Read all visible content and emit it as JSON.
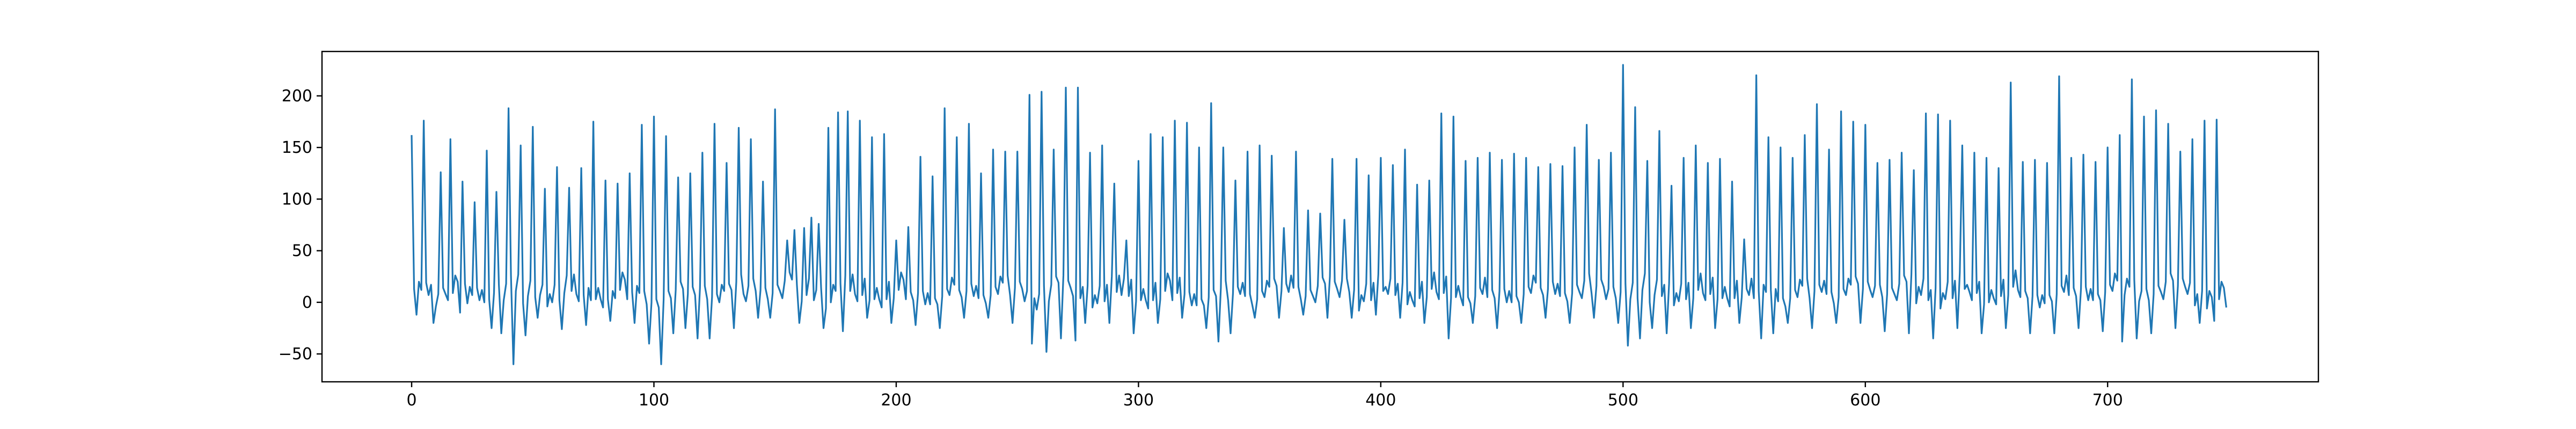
{
  "chart_data": {
    "type": "line",
    "title": "",
    "xlabel": "",
    "ylabel": "",
    "xlim": [
      -37,
      787
    ],
    "ylim": [
      -77,
      243
    ],
    "grid": false,
    "legend": "none",
    "x_ticks": [
      0,
      100,
      200,
      300,
      400,
      500,
      600,
      700
    ],
    "x_tick_labels": [
      "0",
      "100",
      "200",
      "300",
      "400",
      "500",
      "600",
      "700"
    ],
    "y_ticks": [
      -50,
      0,
      50,
      100,
      150,
      200
    ],
    "y_tick_labels": [
      "−50",
      "0",
      "50",
      "100",
      "150",
      "200"
    ],
    "series": [
      {
        "color": "#1f77b4",
        "x_start": 0,
        "x_end": 749,
        "n_points": 750,
        "baseline_sample": [
          10,
          12,
          13,
          15,
          12,
          8,
          5,
          3,
          4,
          7,
          10,
          12,
          15,
          18,
          20
        ],
        "peaks": [
          {
            "x": 0,
            "y": 162
          },
          {
            "x": 5,
            "y": 176
          },
          {
            "x": 12,
            "y": 126
          },
          {
            "x": 16,
            "y": 158
          },
          {
            "x": 21,
            "y": 117
          },
          {
            "x": 26,
            "y": 97
          },
          {
            "x": 31,
            "y": 147
          },
          {
            "x": 35,
            "y": 107
          },
          {
            "x": 40,
            "y": 188
          },
          {
            "x": 45,
            "y": 152
          },
          {
            "x": 50,
            "y": 170
          },
          {
            "x": 55,
            "y": 110
          },
          {
            "x": 60,
            "y": 131
          },
          {
            "x": 65,
            "y": 111
          },
          {
            "x": 70,
            "y": 130
          },
          {
            "x": 75,
            "y": 175
          },
          {
            "x": 80,
            "y": 118
          },
          {
            "x": 85,
            "y": 115
          },
          {
            "x": 90,
            "y": 125
          },
          {
            "x": 95,
            "y": 172
          },
          {
            "x": 100,
            "y": 180
          },
          {
            "x": 105,
            "y": 161
          },
          {
            "x": 110,
            "y": 121
          },
          {
            "x": 115,
            "y": 125
          },
          {
            "x": 120,
            "y": 145
          },
          {
            "x": 125,
            "y": 173
          },
          {
            "x": 130,
            "y": 135
          },
          {
            "x": 135,
            "y": 169
          },
          {
            "x": 140,
            "y": 158
          },
          {
            "x": 145,
            "y": 117
          },
          {
            "x": 150,
            "y": 187
          },
          {
            "x": 155,
            "y": 60
          },
          {
            "x": 158,
            "y": 70
          },
          {
            "x": 162,
            "y": 72
          },
          {
            "x": 165,
            "y": 82
          },
          {
            "x": 168,
            "y": 76
          },
          {
            "x": 172,
            "y": 169
          },
          {
            "x": 176,
            "y": 184
          },
          {
            "x": 180,
            "y": 185
          },
          {
            "x": 185,
            "y": 176
          },
          {
            "x": 190,
            "y": 160
          },
          {
            "x": 195,
            "y": 163
          },
          {
            "x": 200,
            "y": 60
          },
          {
            "x": 205,
            "y": 73
          },
          {
            "x": 210,
            "y": 141
          },
          {
            "x": 215,
            "y": 122
          },
          {
            "x": 220,
            "y": 188
          },
          {
            "x": 225,
            "y": 160
          },
          {
            "x": 230,
            "y": 173
          },
          {
            "x": 235,
            "y": 125
          },
          {
            "x": 240,
            "y": 148
          },
          {
            "x": 245,
            "y": 146
          },
          {
            "x": 250,
            "y": 146
          },
          {
            "x": 255,
            "y": 201
          },
          {
            "x": 260,
            "y": 204
          },
          {
            "x": 265,
            "y": 148
          },
          {
            "x": 270,
            "y": 208
          },
          {
            "x": 275,
            "y": 208
          },
          {
            "x": 280,
            "y": 145
          },
          {
            "x": 285,
            "y": 152
          },
          {
            "x": 290,
            "y": 115
          },
          {
            "x": 295,
            "y": 60
          },
          {
            "x": 300,
            "y": 137
          },
          {
            "x": 305,
            "y": 163
          },
          {
            "x": 310,
            "y": 160
          },
          {
            "x": 315,
            "y": 176
          },
          {
            "x": 320,
            "y": 174
          },
          {
            "x": 325,
            "y": 150
          },
          {
            "x": 330,
            "y": 193
          },
          {
            "x": 335,
            "y": 150
          },
          {
            "x": 340,
            "y": 118
          },
          {
            "x": 345,
            "y": 146
          },
          {
            "x": 350,
            "y": 152
          },
          {
            "x": 355,
            "y": 142
          },
          {
            "x": 360,
            "y": 72
          },
          {
            "x": 365,
            "y": 146
          },
          {
            "x": 370,
            "y": 89
          },
          {
            "x": 375,
            "y": 86
          },
          {
            "x": 380,
            "y": 139
          },
          {
            "x": 385,
            "y": 80
          },
          {
            "x": 390,
            "y": 139
          },
          {
            "x": 395,
            "y": 123
          },
          {
            "x": 400,
            "y": 140
          },
          {
            "x": 405,
            "y": 133
          },
          {
            "x": 410,
            "y": 148
          },
          {
            "x": 415,
            "y": 114
          },
          {
            "x": 420,
            "y": 118
          },
          {
            "x": 425,
            "y": 183
          },
          {
            "x": 430,
            "y": 180
          },
          {
            "x": 435,
            "y": 137
          },
          {
            "x": 440,
            "y": 140
          },
          {
            "x": 445,
            "y": 145
          },
          {
            "x": 450,
            "y": 138
          },
          {
            "x": 455,
            "y": 144
          },
          {
            "x": 460,
            "y": 140
          },
          {
            "x": 465,
            "y": 131
          },
          {
            "x": 470,
            "y": 134
          },
          {
            "x": 475,
            "y": 132
          },
          {
            "x": 480,
            "y": 150
          },
          {
            "x": 485,
            "y": 172
          },
          {
            "x": 490,
            "y": 138
          },
          {
            "x": 495,
            "y": 145
          },
          {
            "x": 500,
            "y": 230
          },
          {
            "x": 505,
            "y": 189
          },
          {
            "x": 510,
            "y": 137
          },
          {
            "x": 515,
            "y": 166
          },
          {
            "x": 520,
            "y": 113
          },
          {
            "x": 525,
            "y": 140
          },
          {
            "x": 530,
            "y": 152
          },
          {
            "x": 535,
            "y": 135
          },
          {
            "x": 540,
            "y": 139
          },
          {
            "x": 545,
            "y": 117
          },
          {
            "x": 550,
            "y": 61
          },
          {
            "x": 555,
            "y": 220
          },
          {
            "x": 560,
            "y": 160
          },
          {
            "x": 565,
            "y": 150
          },
          {
            "x": 570,
            "y": 140
          },
          {
            "x": 575,
            "y": 162
          },
          {
            "x": 580,
            "y": 192
          },
          {
            "x": 585,
            "y": 148
          },
          {
            "x": 590,
            "y": 185
          },
          {
            "x": 595,
            "y": 175
          },
          {
            "x": 600,
            "y": 172
          },
          {
            "x": 605,
            "y": 135
          },
          {
            "x": 610,
            "y": 138
          },
          {
            "x": 615,
            "y": 145
          },
          {
            "x": 620,
            "y": 128
          },
          {
            "x": 625,
            "y": 183
          },
          {
            "x": 630,
            "y": 182
          },
          {
            "x": 635,
            "y": 176
          },
          {
            "x": 640,
            "y": 152
          },
          {
            "x": 645,
            "y": 145
          },
          {
            "x": 650,
            "y": 140
          },
          {
            "x": 655,
            "y": 130
          },
          {
            "x": 660,
            "y": 213
          },
          {
            "x": 665,
            "y": 136
          },
          {
            "x": 670,
            "y": 138
          },
          {
            "x": 675,
            "y": 135
          },
          {
            "x": 680,
            "y": 219
          },
          {
            "x": 685,
            "y": 140
          },
          {
            "x": 690,
            "y": 143
          },
          {
            "x": 695,
            "y": 136
          },
          {
            "x": 700,
            "y": 150
          },
          {
            "x": 705,
            "y": 162
          },
          {
            "x": 710,
            "y": 216
          },
          {
            "x": 715,
            "y": 180
          },
          {
            "x": 720,
            "y": 186
          },
          {
            "x": 725,
            "y": 173
          },
          {
            "x": 730,
            "y": 146
          },
          {
            "x": 735,
            "y": 158
          },
          {
            "x": 740,
            "y": 176
          },
          {
            "x": 745,
            "y": 177
          }
        ],
        "troughs": [
          {
            "x": 2,
            "y": -12
          },
          {
            "x": 9,
            "y": -20
          },
          {
            "x": 20,
            "y": -10
          },
          {
            "x": 33,
            "y": -25
          },
          {
            "x": 37,
            "y": -30
          },
          {
            "x": 42,
            "y": -60
          },
          {
            "x": 47,
            "y": -32
          },
          {
            "x": 52,
            "y": -15
          },
          {
            "x": 62,
            "y": -26
          },
          {
            "x": 72,
            "y": -22
          },
          {
            "x": 82,
            "y": -18
          },
          {
            "x": 92,
            "y": -20
          },
          {
            "x": 98,
            "y": -40
          },
          {
            "x": 103,
            "y": -60
          },
          {
            "x": 108,
            "y": -30
          },
          {
            "x": 113,
            "y": -25
          },
          {
            "x": 118,
            "y": -35
          },
          {
            "x": 123,
            "y": -35
          },
          {
            "x": 133,
            "y": -25
          },
          {
            "x": 143,
            "y": -15
          },
          {
            "x": 148,
            "y": -15
          },
          {
            "x": 160,
            "y": -20
          },
          {
            "x": 170,
            "y": -25
          },
          {
            "x": 178,
            "y": -28
          },
          {
            "x": 188,
            "y": -15
          },
          {
            "x": 198,
            "y": -20
          },
          {
            "x": 208,
            "y": -22
          },
          {
            "x": 218,
            "y": -25
          },
          {
            "x": 228,
            "y": -15
          },
          {
            "x": 238,
            "y": -15
          },
          {
            "x": 248,
            "y": -20
          },
          {
            "x": 256,
            "y": -40
          },
          {
            "x": 262,
            "y": -48
          },
          {
            "x": 268,
            "y": -35
          },
          {
            "x": 274,
            "y": -37
          },
          {
            "x": 278,
            "y": -20
          },
          {
            "x": 288,
            "y": -20
          },
          {
            "x": 298,
            "y": -30
          },
          {
            "x": 308,
            "y": -20
          },
          {
            "x": 318,
            "y": -15
          },
          {
            "x": 328,
            "y": -25
          },
          {
            "x": 333,
            "y": -38
          },
          {
            "x": 338,
            "y": -30
          },
          {
            "x": 348,
            "y": -15
          },
          {
            "x": 358,
            "y": -15
          },
          {
            "x": 368,
            "y": -12
          },
          {
            "x": 378,
            "y": -15
          },
          {
            "x": 388,
            "y": -15
          },
          {
            "x": 398,
            "y": -12
          },
          {
            "x": 408,
            "y": -15
          },
          {
            "x": 418,
            "y": -20
          },
          {
            "x": 428,
            "y": -35
          },
          {
            "x": 438,
            "y": -20
          },
          {
            "x": 448,
            "y": -25
          },
          {
            "x": 458,
            "y": -20
          },
          {
            "x": 468,
            "y": -15
          },
          {
            "x": 478,
            "y": -20
          },
          {
            "x": 488,
            "y": -15
          },
          {
            "x": 498,
            "y": -20
          },
          {
            "x": 502,
            "y": -42
          },
          {
            "x": 507,
            "y": -35
          },
          {
            "x": 512,
            "y": -25
          },
          {
            "x": 518,
            "y": -30
          },
          {
            "x": 528,
            "y": -25
          },
          {
            "x": 538,
            "y": -25
          },
          {
            "x": 548,
            "y": -20
          },
          {
            "x": 557,
            "y": -35
          },
          {
            "x": 562,
            "y": -30
          },
          {
            "x": 568,
            "y": -20
          },
          {
            "x": 578,
            "y": -25
          },
          {
            "x": 588,
            "y": -20
          },
          {
            "x": 598,
            "y": -20
          },
          {
            "x": 608,
            "y": -28
          },
          {
            "x": 618,
            "y": -30
          },
          {
            "x": 628,
            "y": -35
          },
          {
            "x": 638,
            "y": -25
          },
          {
            "x": 648,
            "y": -30
          },
          {
            "x": 658,
            "y": -25
          },
          {
            "x": 668,
            "y": -30
          },
          {
            "x": 678,
            "y": -30
          },
          {
            "x": 688,
            "y": -25
          },
          {
            "x": 698,
            "y": -28
          },
          {
            "x": 706,
            "y": -38
          },
          {
            "x": 712,
            "y": -35
          },
          {
            "x": 718,
            "y": -30
          },
          {
            "x": 728,
            "y": -25
          },
          {
            "x": 738,
            "y": -20
          },
          {
            "x": 744,
            "y": -18
          },
          {
            "x": 749,
            "y": -5
          }
        ]
      }
    ]
  }
}
